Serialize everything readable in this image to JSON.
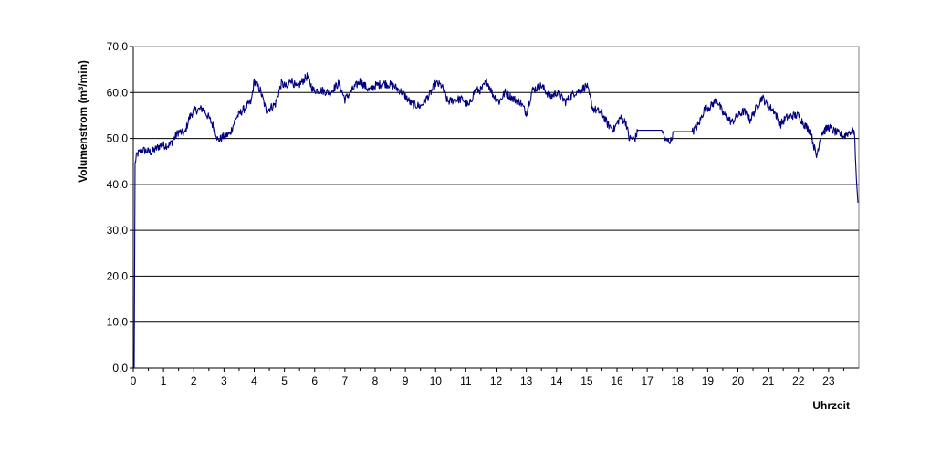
{
  "chart_data": {
    "type": "line",
    "title": "",
    "xlabel": "Uhrzeit",
    "ylabel": "Volumenstrom (m³/min)",
    "xlim": [
      0,
      24
    ],
    "ylim": [
      0,
      70
    ],
    "x_ticks": [
      "0",
      "1",
      "2",
      "3",
      "4",
      "5",
      "6",
      "7",
      "8",
      "9",
      "10",
      "11",
      "12",
      "13",
      "14",
      "15",
      "16",
      "17",
      "18",
      "19",
      "20",
      "21",
      "22",
      "23"
    ],
    "y_ticks": [
      "0,0",
      "10,0",
      "20,0",
      "30,0",
      "40,0",
      "50,0",
      "60,0",
      "70,0"
    ],
    "grid": "horizontal",
    "legend": "none",
    "series": [
      {
        "color": "#000080",
        "points": [
          [
            0.0,
            0.0
          ],
          [
            0.03,
            0.0
          ],
          [
            0.06,
            44.5
          ],
          [
            0.12,
            46.5
          ],
          [
            0.3,
            47.5
          ],
          [
            0.6,
            47.0
          ],
          [
            0.9,
            48.5
          ],
          [
            1.2,
            48.5
          ],
          [
            1.5,
            51.5
          ],
          [
            1.7,
            51.0
          ],
          [
            1.85,
            54.5
          ],
          [
            2.0,
            56.0
          ],
          [
            2.3,
            56.5
          ],
          [
            2.5,
            54.5
          ],
          [
            2.7,
            52.0
          ],
          [
            2.8,
            49.5
          ],
          [
            3.0,
            50.5
          ],
          [
            3.2,
            51.0
          ],
          [
            3.4,
            54.5
          ],
          [
            3.6,
            56.0
          ],
          [
            3.9,
            58.0
          ],
          [
            4.0,
            62.5
          ],
          [
            4.2,
            60.5
          ],
          [
            4.4,
            56.0
          ],
          [
            4.7,
            57.5
          ],
          [
            4.9,
            62.0
          ],
          [
            5.1,
            61.0
          ],
          [
            5.2,
            63.0
          ],
          [
            5.4,
            61.0
          ],
          [
            5.6,
            62.5
          ],
          [
            5.75,
            63.5
          ],
          [
            5.95,
            60.5
          ],
          [
            6.2,
            60.5
          ],
          [
            6.5,
            60.0
          ],
          [
            6.8,
            62.0
          ],
          [
            7.0,
            58.5
          ],
          [
            7.3,
            61.0
          ],
          [
            7.5,
            62.5
          ],
          [
            7.8,
            60.5
          ],
          [
            8.0,
            61.5
          ],
          [
            8.3,
            62.0
          ],
          [
            8.6,
            61.5
          ],
          [
            8.9,
            60.0
          ],
          [
            9.2,
            57.5
          ],
          [
            9.5,
            57.0
          ],
          [
            9.8,
            59.5
          ],
          [
            10.0,
            62.0
          ],
          [
            10.2,
            61.5
          ],
          [
            10.4,
            58.0
          ],
          [
            10.7,
            58.5
          ],
          [
            10.9,
            58.5
          ],
          [
            11.1,
            57.0
          ],
          [
            11.3,
            60.5
          ],
          [
            11.5,
            60.5
          ],
          [
            11.7,
            62.5
          ],
          [
            11.9,
            59.5
          ],
          [
            12.1,
            58.0
          ],
          [
            12.3,
            60.0
          ],
          [
            12.6,
            58.5
          ],
          [
            12.8,
            58.0
          ],
          [
            13.0,
            55.5
          ],
          [
            13.2,
            60.5
          ],
          [
            13.5,
            61.5
          ],
          [
            13.8,
            59.0
          ],
          [
            14.0,
            60.0
          ],
          [
            14.3,
            58.0
          ],
          [
            14.6,
            60.0
          ],
          [
            14.8,
            60.5
          ],
          [
            15.0,
            61.5
          ],
          [
            15.2,
            56.5
          ],
          [
            15.5,
            55.5
          ],
          [
            15.7,
            53.0
          ],
          [
            15.9,
            52.0
          ],
          [
            16.1,
            54.5
          ],
          [
            16.3,
            53.5
          ],
          [
            16.4,
            50.0
          ],
          [
            16.6,
            50.0
          ],
          [
            16.7,
            51.8
          ],
          [
            17.5,
            51.8
          ],
          [
            17.6,
            49.5
          ],
          [
            17.8,
            49.5
          ],
          [
            17.85,
            51.5
          ],
          [
            18.5,
            51.5
          ],
          [
            18.7,
            53.0
          ],
          [
            18.9,
            56.5
          ],
          [
            19.1,
            57.0
          ],
          [
            19.3,
            58.5
          ],
          [
            19.5,
            55.5
          ],
          [
            19.8,
            53.5
          ],
          [
            20.0,
            55.0
          ],
          [
            20.2,
            56.0
          ],
          [
            20.4,
            54.0
          ],
          [
            20.6,
            56.5
          ],
          [
            20.8,
            59.0
          ],
          [
            21.0,
            57.0
          ],
          [
            21.2,
            56.0
          ],
          [
            21.4,
            53.0
          ],
          [
            21.6,
            54.5
          ],
          [
            21.8,
            55.0
          ],
          [
            22.0,
            55.0
          ],
          [
            22.2,
            53.0
          ],
          [
            22.4,
            51.5
          ],
          [
            22.6,
            46.0
          ],
          [
            22.75,
            51.0
          ],
          [
            23.0,
            52.5
          ],
          [
            23.2,
            51.5
          ],
          [
            23.5,
            50.5
          ],
          [
            23.7,
            51.5
          ],
          [
            23.85,
            51.5
          ],
          [
            23.92,
            41.0
          ],
          [
            23.97,
            36.0
          ]
        ]
      }
    ]
  }
}
